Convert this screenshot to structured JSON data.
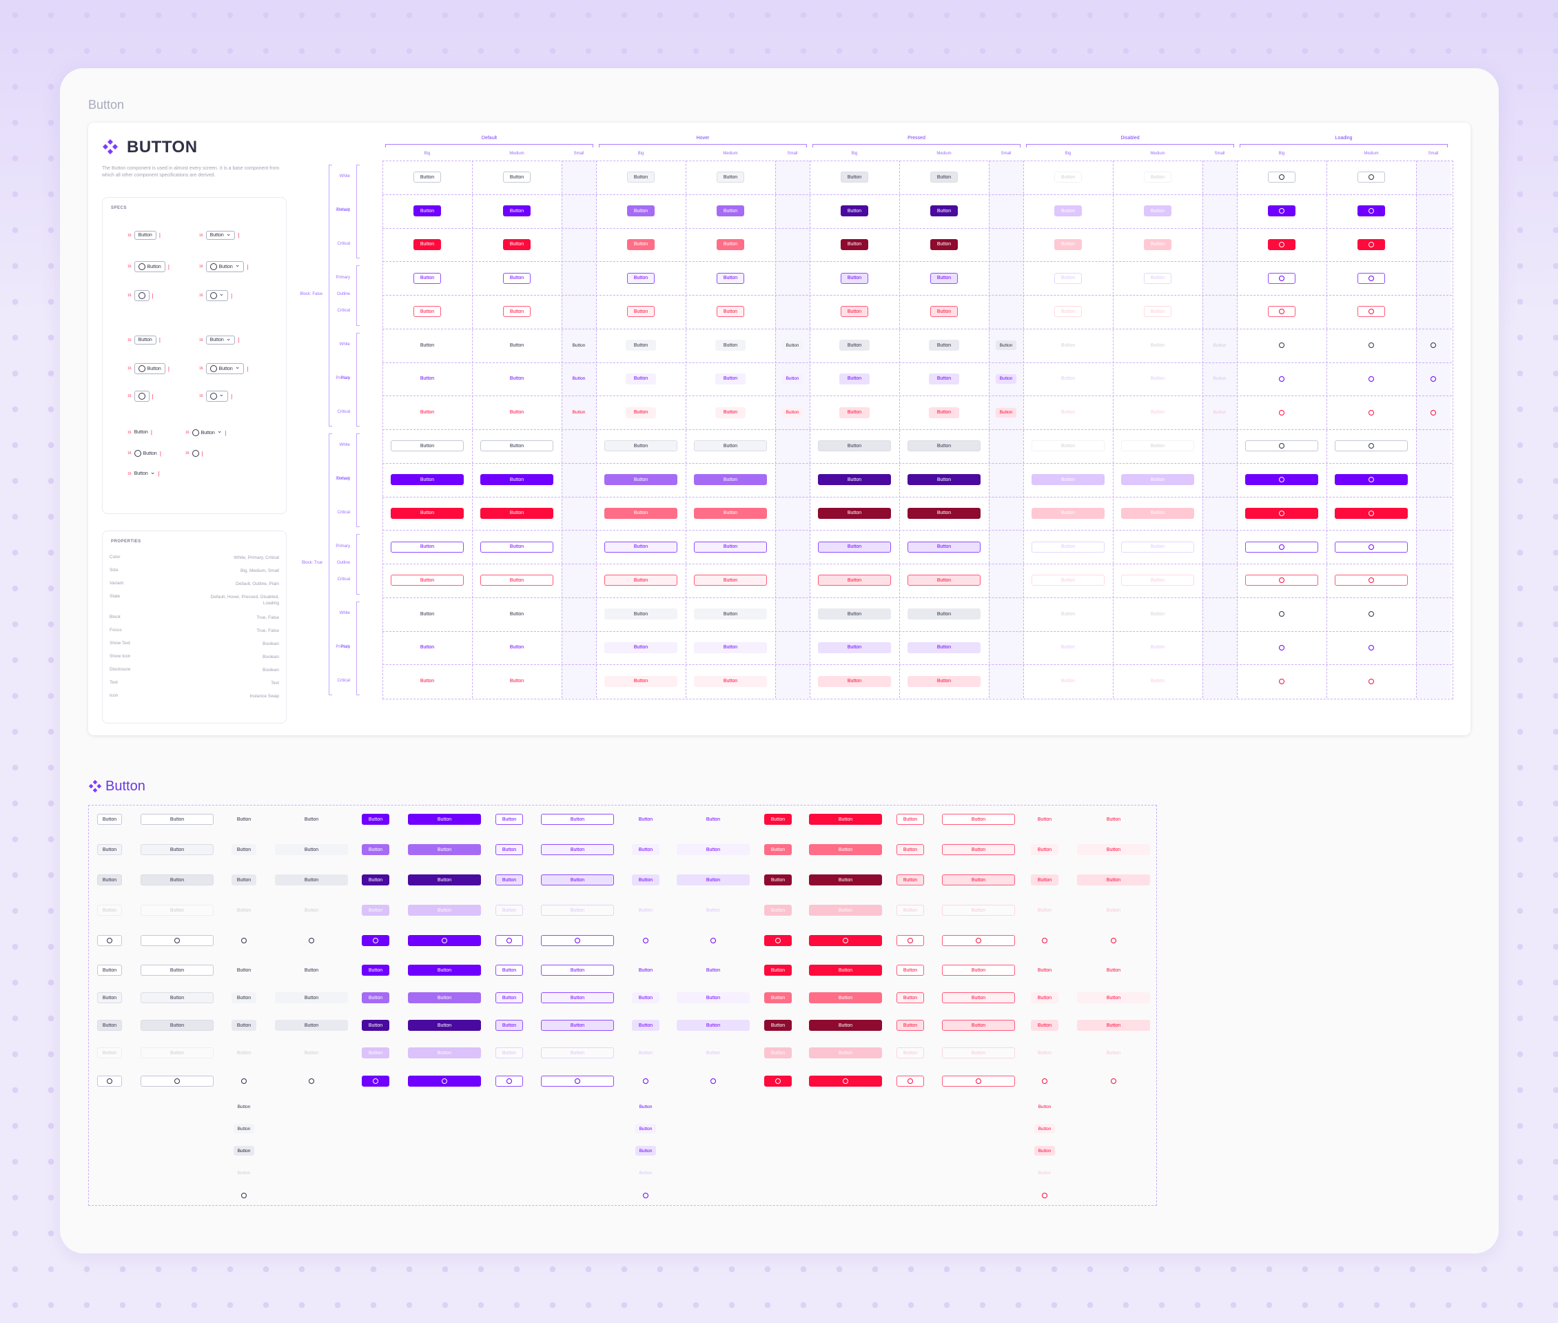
{
  "page": {
    "title": "Button"
  },
  "docs": {
    "title": "BUTTON",
    "description": "The Button component is used in almost every screen. It is a base component from which all other component specifications are derived.",
    "specs_label": "SPECS",
    "properties_label": "PROPERTIES",
    "properties": [
      {
        "name": "Color",
        "value": "White, Primary, Critical"
      },
      {
        "name": "Size",
        "value": "Big, Medium, Small"
      },
      {
        "name": "Variant",
        "value": "Default, Outline, Plain"
      },
      {
        "name": "State",
        "value": "Default, Hover, Pressed, Disabled, Loading"
      },
      {
        "name": "Block",
        "value": "True, False"
      },
      {
        "name": "Focus",
        "value": "True, False"
      },
      {
        "name": "Show Text",
        "value": "Boolean"
      },
      {
        "name": "Show Icon",
        "value": "Boolean"
      },
      {
        "name": "Disclosure",
        "value": "Boolean"
      },
      {
        "name": "Text",
        "value": "Text"
      },
      {
        "name": "Icon",
        "value": "Instance Swap"
      }
    ],
    "spec_sample": "Button",
    "spec_measure": "16",
    "state_groups": [
      "Default",
      "Hover",
      "Pressed",
      "Disabled",
      "Loading"
    ],
    "sizes": [
      "Big",
      "Medium",
      "Small"
    ],
    "block_groups": [
      "Block: False",
      "Block: True"
    ],
    "variants": [
      "Default",
      "Outline",
      "Plain"
    ],
    "colors": [
      "White",
      "Primary",
      "Critical"
    ],
    "button_label": "Button"
  },
  "library": {
    "title": "Button",
    "button_label": "Button"
  },
  "icons": {
    "logo": "component-diamond-icon",
    "loading": "spinner-icon",
    "disclosure": "chevron-down-icon"
  },
  "colors": {
    "primary": "#6f00ff",
    "primary_hover": "#a56bf5",
    "primary_pressed": "#4a0a9f",
    "critical": "#ff0a3c",
    "critical_hover": "#ff6d86",
    "critical_pressed": "#8e0a2e",
    "text_dark": "#2f3146",
    "dashed": "#c9adf9"
  }
}
